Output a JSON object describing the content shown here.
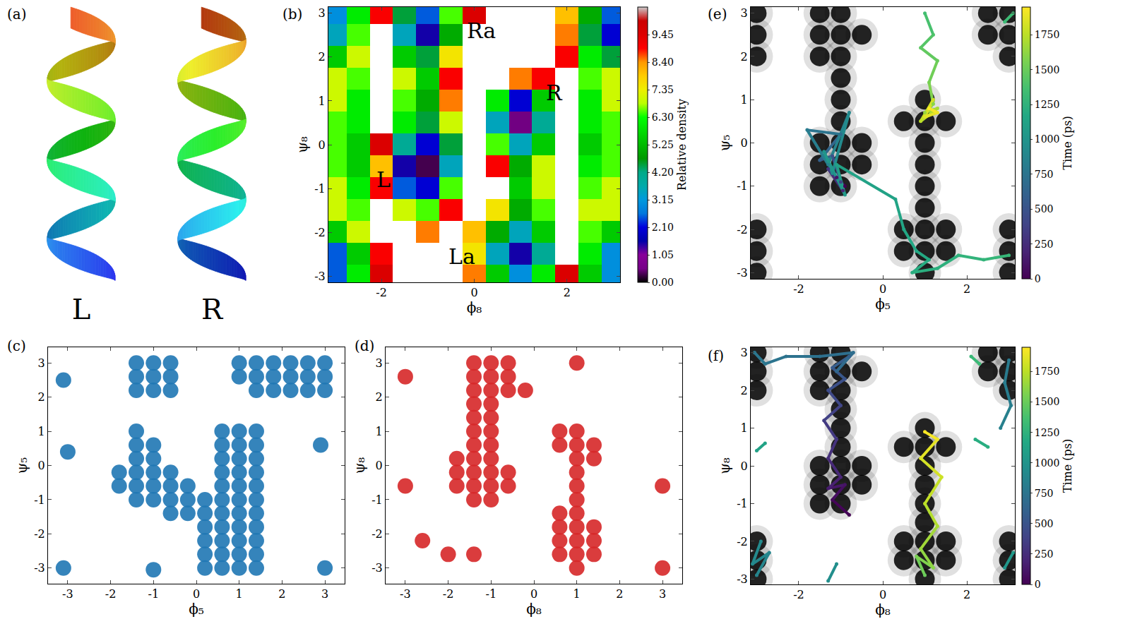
{
  "chart_data": [
    {
      "panel": "(a)",
      "type": "illustration",
      "labels": [
        "L",
        "R"
      ]
    },
    {
      "panel": "(b)",
      "type": "heatmap",
      "x_label": "ϕ₈",
      "y_label": "ψ₈",
      "x": [
        -3,
        -2.5,
        -2,
        -1.5,
        -1,
        -0.5,
        0,
        0.5,
        1,
        1.5,
        2,
        2.5,
        3
      ],
      "y": [
        -3,
        -2.5,
        -2,
        -1.5,
        -1,
        -0.5,
        0,
        0.5,
        1,
        1.5,
        2,
        2.5,
        3
      ],
      "z": [
        [
          2.5,
          6.0,
          9.5,
          null,
          null,
          null,
          8.5,
          5.5,
          3.0,
          6.0,
          9.5,
          5.5,
          3.0
        ],
        [
          2.5,
          5.5,
          9.0,
          null,
          null,
          null,
          7.5,
          3.5,
          1.5,
          4.0,
          null,
          6.0,
          3.0
        ],
        [
          5.5,
          7.0,
          null,
          null,
          8.5,
          null,
          8.0,
          5.0,
          3.5,
          5.5,
          null,
          6.5,
          5.5
        ],
        [
          7.0,
          6.5,
          null,
          7.0,
          6.5,
          9.0,
          null,
          7.5,
          5.0,
          6.5,
          null,
          7.0,
          7.0
        ],
        [
          7.0,
          6.0,
          9.0,
          2.5,
          2.0,
          6.5,
          null,
          null,
          5.5,
          7.0,
          null,
          6.5,
          7.0
        ],
        [
          6.5,
          5.5,
          8.0,
          1.5,
          0.3,
          3.5,
          null,
          9.0,
          5.0,
          7.0,
          null,
          6.0,
          6.5
        ],
        [
          6.5,
          5.5,
          9.5,
          4.0,
          2.0,
          4.5,
          null,
          6.5,
          3.5,
          5.5,
          null,
          5.5,
          6.5
        ],
        [
          6.5,
          6.0,
          null,
          6.0,
          4.5,
          7.0,
          null,
          3.5,
          0.5,
          4.0,
          null,
          6.0,
          6.5
        ],
        [
          7.0,
          6.0,
          null,
          6.5,
          5.0,
          8.5,
          null,
          6.0,
          2.0,
          5.5,
          null,
          6.0,
          7.0
        ],
        [
          7.0,
          6.5,
          null,
          7.0,
          5.5,
          9.0,
          null,
          null,
          8.5,
          9.0,
          null,
          6.5,
          7.0
        ],
        [
          5.5,
          7.0,
          null,
          5.5,
          4.5,
          7.5,
          null,
          null,
          null,
          null,
          9.0,
          6.0,
          4.5
        ],
        [
          3.5,
          6.5,
          null,
          3.5,
          1.5,
          5.0,
          null,
          null,
          null,
          null,
          8.5,
          4.5,
          2.0
        ],
        [
          3.0,
          6.0,
          9.0,
          4.5,
          2.5,
          6.5,
          9.5,
          null,
          null,
          null,
          8.0,
          5.0,
          2.5
        ]
      ],
      "xlim": [
        -3.1416,
        3.1416
      ],
      "ylim": [
        -3.1416,
        3.1416
      ],
      "xticks": [
        -2,
        0,
        2
      ],
      "yticks": [
        -3,
        -2,
        -1,
        0,
        1,
        2,
        3
      ],
      "colorbar_title": "Relative density",
      "colorbar_range": [
        0,
        10.5
      ],
      "colorbar_ticks": [
        {
          "value": 0,
          "label": "0.00"
        },
        {
          "value": 1.05,
          "label": "1.05"
        },
        {
          "value": 2.1,
          "label": "2.10"
        },
        {
          "value": 3.15,
          "label": "3.15"
        },
        {
          "value": 4.2,
          "label": "4.20"
        },
        {
          "value": 5.25,
          "label": "5.25"
        },
        {
          "value": 6.3,
          "label": "6.30"
        },
        {
          "value": 7.35,
          "label": "7.35"
        },
        {
          "value": 8.4,
          "label": "8.40"
        },
        {
          "value": 9.45,
          "label": "9.45"
        }
      ],
      "annotations": [
        {
          "text": "Ra",
          "x": 0.15,
          "y": 2.6
        },
        {
          "text": "R",
          "x": 1.73,
          "y": 1.19
        },
        {
          "text": "L",
          "x": -1.95,
          "y": -0.8
        },
        {
          "text": "La",
          "x": -0.27,
          "y": -2.56
        }
      ]
    },
    {
      "panel": "(c)",
      "type": "scatter",
      "x_label": "ϕ₅",
      "y_label": "ψ₅",
      "color": "#1f77b4",
      "x": [
        -1.4,
        -1.0,
        -0.6,
        1.0,
        1.4,
        1.8,
        2.2,
        2.6,
        3.0,
        -1.4,
        -1.0,
        -0.6,
        1.0,
        1.4,
        1.8,
        2.2,
        2.6,
        3.0,
        -1.4,
        -1.0,
        -0.6,
        1.4,
        1.8,
        2.2,
        2.6,
        3.0,
        -1.4,
        0.6,
        1.0,
        1.4,
        -1.4,
        -1.0,
        0.6,
        1.0,
        1.4,
        -1.4,
        -1.0,
        0.6,
        1.0,
        1.4,
        -1.8,
        -1.4,
        -1.0,
        -0.6,
        0.6,
        1.0,
        1.4,
        -1.8,
        -1.4,
        -1.0,
        -0.6,
        -0.2,
        0.6,
        1.0,
        1.4,
        -1.4,
        -1.0,
        -0.6,
        -0.2,
        0.2,
        0.6,
        1.0,
        1.4,
        -0.6,
        -0.2,
        0.2,
        0.6,
        1.0,
        1.4,
        0.2,
        0.6,
        1.0,
        1.4,
        0.2,
        0.6,
        1.0,
        1.4,
        0.2,
        0.6,
        1.0,
        1.4,
        0.2,
        0.6,
        1.0,
        1.4,
        -3.1,
        -3.0,
        -3.1,
        -1.0,
        3.0,
        2.9
      ],
      "y": [
        3.0,
        3.0,
        3.0,
        3.0,
        3.0,
        3.0,
        3.0,
        3.0,
        3.0,
        2.6,
        2.6,
        2.6,
        2.6,
        2.6,
        2.6,
        2.6,
        2.6,
        2.6,
        2.2,
        2.2,
        2.2,
        2.2,
        2.2,
        2.2,
        2.2,
        2.2,
        1.0,
        1.0,
        1.0,
        1.0,
        0.6,
        0.6,
        0.6,
        0.6,
        0.6,
        0.2,
        0.2,
        0.2,
        0.2,
        0.2,
        -0.2,
        -0.2,
        -0.2,
        -0.2,
        -0.2,
        -0.2,
        -0.2,
        -0.6,
        -0.6,
        -0.6,
        -0.6,
        -0.6,
        -0.6,
        -0.6,
        -0.6,
        -1.0,
        -1.0,
        -1.0,
        -1.0,
        -1.0,
        -1.0,
        -1.0,
        -1.0,
        -1.4,
        -1.4,
        -1.4,
        -1.4,
        -1.4,
        -1.4,
        -1.8,
        -1.8,
        -1.8,
        -1.8,
        -2.2,
        -2.2,
        -2.2,
        -2.2,
        -2.6,
        -2.6,
        -2.6,
        -2.6,
        -3.0,
        -3.0,
        -3.0,
        -3.0,
        2.5,
        0.4,
        -3.0,
        -3.05,
        -3.0,
        0.6
      ],
      "xlim": [
        -3.46,
        3.46
      ],
      "ylim": [
        -3.46,
        3.46
      ],
      "xticks": [
        -3,
        -2,
        -1,
        0,
        1,
        2,
        3
      ],
      "yticks": [
        -3,
        -2,
        -1,
        0,
        1,
        2,
        3
      ]
    },
    {
      "panel": "(d)",
      "type": "scatter",
      "x_label": "ϕ₈",
      "y_label": "ψ₈",
      "color": "#d62728",
      "x": [
        -1.4,
        -1.0,
        -0.6,
        1.0,
        -1.4,
        -1.0,
        -0.6,
        -3.0,
        -1.4,
        -1.0,
        -0.6,
        -0.2,
        -1.4,
        -1.0,
        -1.4,
        -1.0,
        -1.4,
        -1.0,
        0.6,
        1.0,
        -1.4,
        -1.0,
        0.6,
        1.0,
        1.4,
        -1.8,
        -1.4,
        -1.0,
        1.0,
        1.4,
        -1.8,
        -1.4,
        -1.0,
        -0.6,
        1.0,
        -1.8,
        -1.4,
        -1.0,
        -0.6,
        1.0,
        -3.0,
        3.0,
        -1.4,
        -1.0,
        1.0,
        0.6,
        1.0,
        0.6,
        1.0,
        1.4,
        0.6,
        1.0,
        1.4,
        -2.6,
        0.6,
        1.0,
        1.4,
        -2.0,
        -1.4,
        1.0,
        3.0
      ],
      "y": [
        3.0,
        3.0,
        3.0,
        3.0,
        2.6,
        2.6,
        2.6,
        2.6,
        2.2,
        2.2,
        2.2,
        2.2,
        1.8,
        1.8,
        1.4,
        1.4,
        1.0,
        1.0,
        1.0,
        1.0,
        0.6,
        0.6,
        0.6,
        0.6,
        0.6,
        0.2,
        0.2,
        0.2,
        0.2,
        0.2,
        -0.2,
        -0.2,
        -0.2,
        -0.2,
        -0.2,
        -0.6,
        -0.6,
        -0.6,
        -0.6,
        -0.6,
        -0.6,
        -0.6,
        -1.0,
        -1.0,
        -1.0,
        -1.4,
        -1.4,
        -1.8,
        -1.8,
        -1.8,
        -2.2,
        -2.2,
        -2.2,
        -2.2,
        -2.6,
        -2.6,
        -2.6,
        -2.6,
        -2.6,
        -3.0,
        -3.0
      ],
      "xlim": [
        -3.46,
        3.46
      ],
      "ylim": [
        -3.46,
        3.46
      ],
      "xticks": [
        -3,
        -2,
        -1,
        0,
        1,
        2,
        3
      ],
      "yticks": [
        -3,
        -2,
        -1,
        0,
        1,
        2,
        3
      ]
    },
    {
      "panel": "(e)",
      "type": "trajectory",
      "x_label": "ϕ₅",
      "y_label": "ψ₅",
      "background": {
        "color": "#000000",
        "x": [
          -3,
          -1.5,
          -1,
          2.5,
          3,
          -3,
          -1.5,
          -1,
          -0.5,
          2.5,
          3,
          -3,
          -1.5,
          -1,
          3,
          -1,
          -1,
          1,
          -1,
          0.5,
          1,
          1.5,
          -1.5,
          -1,
          -0.5,
          1,
          -1.5,
          -1,
          -0.5,
          1,
          -1.5,
          -1,
          1,
          1,
          -3,
          0.5,
          1,
          1.5,
          3,
          -3,
          0.5,
          1,
          1.5,
          3,
          -3,
          1,
          3
        ],
        "y": [
          3,
          3,
          3,
          3,
          3,
          2.5,
          2.5,
          2.5,
          2.5,
          2.5,
          2.5,
          2,
          2,
          2,
          2,
          1.5,
          1,
          1,
          0.5,
          0.5,
          0.5,
          0.5,
          0,
          0,
          0,
          0,
          -0.5,
          -0.5,
          -0.5,
          -0.5,
          -1,
          -1,
          -1,
          -1.5,
          -2,
          -2,
          -2,
          -2,
          -2,
          -2.5,
          -2.5,
          -2.5,
          -2.5,
          -2.5,
          -3,
          -3,
          -3
        ]
      },
      "time": [
        0,
        100,
        200,
        300,
        400,
        500,
        600,
        700,
        800,
        850,
        900,
        950,
        1000,
        1050,
        1100,
        1130,
        1150,
        1170,
        1190,
        1210,
        1230,
        1250,
        1270,
        1300,
        null,
        1320,
        1330,
        null,
        1360,
        1400,
        1450,
        1500,
        1550,
        1600,
        1650,
        1700,
        1750,
        1800,
        1850,
        1900,
        1950
      ],
      "x": [
        -0.9,
        -1.1,
        -0.95,
        -1.3,
        -1.0,
        -1.2,
        -1.5,
        -1.0,
        -1.8,
        -1.3,
        -0.8,
        -1.2,
        -1.4,
        -0.9,
        -1.1,
        0.3,
        0.5,
        0.8,
        1.1,
        0.7,
        1.3,
        1.8,
        2.4,
        3.0,
        null,
        2.9,
        3.1,
        null,
        1.0,
        1.2,
        0.9,
        1.3,
        1.1,
        1.2,
        1.0,
        1.3,
        0.9,
        1.2,
        1.0,
        1.3,
        1.1
      ],
      "y": [
        -1.0,
        -0.8,
        -1.1,
        -0.6,
        -0.9,
        -0.3,
        -0.4,
        0.2,
        0.3,
        -0.5,
        0.7,
        -0.7,
        -0.2,
        -1.2,
        -0.5,
        -1.3,
        -2.0,
        -2.5,
        -2.7,
        -3.0,
        -2.9,
        -2.6,
        -2.7,
        -2.6,
        null,
        2.8,
        3.0,
        null,
        3.0,
        2.5,
        2.2,
        1.9,
        1.4,
        0.9,
        0.7,
        0.8,
        0.5,
        1.0,
        0.6,
        0.7,
        0.8
      ],
      "colorbar_title": "Time (ps)",
      "colorbar_range": [
        0,
        1950
      ],
      "colorbar_ticks": [
        0,
        250,
        500,
        750,
        1000,
        1250,
        1500,
        1750
      ],
      "xlim": [
        -3.1416,
        3.1416
      ],
      "ylim": [
        -3.1416,
        3.1416
      ],
      "xticks": [
        -2,
        0,
        2
      ],
      "yticks": [
        -3,
        -2,
        -1,
        0,
        1,
        2,
        3
      ]
    },
    {
      "panel": "(f)",
      "type": "trajectory",
      "x_label": "ϕ₈",
      "y_label": "ψ₈",
      "background": {
        "color": "#000000",
        "x": [
          -3,
          -1.5,
          -1,
          2.5,
          3,
          -3,
          -1.5,
          -1,
          -0.5,
          2.5,
          3,
          -3,
          -1.5,
          -1,
          3,
          -1,
          -1,
          1,
          -1,
          0.5,
          1,
          1.5,
          -1.5,
          -1,
          -0.5,
          1,
          -1.5,
          -1,
          -0.5,
          1,
          -1.5,
          -1,
          1,
          1,
          -3,
          0.5,
          1,
          1.5,
          3,
          -3,
          0.5,
          1,
          1.5,
          3,
          -3,
          1,
          3
        ],
        "y": [
          3,
          3,
          3,
          3,
          3,
          2.5,
          2.5,
          2.5,
          2.5,
          2.5,
          2.5,
          2,
          2,
          2,
          2,
          1.5,
          1,
          1,
          0.5,
          0.5,
          0.5,
          0.5,
          0,
          0,
          0,
          0,
          -0.5,
          -0.5,
          -0.5,
          -0.5,
          -1,
          -1,
          -1,
          -1.5,
          -2,
          -2,
          -2,
          -2,
          -2,
          -2.5,
          -2.5,
          -2.5,
          -2.5,
          -2.5,
          -3,
          -3,
          -3
        ]
      },
      "time": [
        0,
        50,
        100,
        150,
        200,
        250,
        300,
        350,
        400,
        450,
        500,
        550,
        600,
        650,
        700,
        720,
        740,
        760,
        770,
        null,
        790,
        810,
        830,
        850,
        null,
        870,
        890,
        910,
        930,
        null,
        950,
        960,
        null,
        1000,
        1050,
        null,
        1100,
        1130,
        null,
        1200,
        1220,
        null,
        1300,
        1320,
        null,
        1500,
        1550,
        1600,
        1650,
        1700,
        1750,
        1800,
        1850,
        1900,
        1950
      ],
      "x": [
        -0.8,
        -1.2,
        -0.9,
        -1.3,
        -1.0,
        -1.3,
        -1.1,
        -1.4,
        -1.0,
        -1.3,
        -0.9,
        -1.2,
        -0.8,
        -1.1,
        -0.7,
        -1.5,
        -2.3,
        -2.8,
        -3.05,
        null,
        3.0,
        2.9,
        3.05,
        2.8,
        null,
        -3.0,
        -2.7,
        -3.1,
        -2.9,
        null,
        -1.3,
        -1.1,
        null,
        2.9,
        3.1,
        null,
        -3.0,
        -2.8,
        null,
        2.2,
        2.5,
        null,
        2.1,
        2.3,
        null,
        1.0,
        0.8,
        1.2,
        0.9,
        1.3,
        1.0,
        1.4,
        0.9,
        1.3,
        1.0
      ],
      "y": [
        -1.3,
        -0.9,
        -0.5,
        -0.6,
        -0.3,
        0.2,
        0.7,
        1.2,
        1.6,
        2.0,
        2.3,
        2.6,
        2.9,
        2.5,
        3.0,
        2.9,
        2.9,
        2.7,
        3.0,
        null,
        2.8,
        2.2,
        1.6,
        1.0,
        null,
        -2.9,
        -2.3,
        -2.6,
        -2.0,
        null,
        -3.05,
        -2.6,
        null,
        -2.7,
        -2.3,
        null,
        0.4,
        0.6,
        null,
        0.7,
        0.5,
        null,
        2.9,
        2.7,
        null,
        -2.9,
        -2.4,
        -2.7,
        -2.2,
        -1.6,
        -1.0,
        -0.3,
        0.2,
        0.7,
        0.9
      ],
      "colorbar_title": "Time (ps)",
      "colorbar_range": [
        0,
        1950
      ],
      "colorbar_ticks": [
        0,
        250,
        500,
        750,
        1000,
        1250,
        1500,
        1750
      ],
      "xlim": [
        -3.1416,
        3.1416
      ],
      "ylim": [
        -3.1416,
        3.1416
      ],
      "xticks": [
        -2,
        0,
        2
      ],
      "yticks": [
        -3,
        -2,
        -1,
        0,
        1,
        2,
        3
      ]
    }
  ]
}
